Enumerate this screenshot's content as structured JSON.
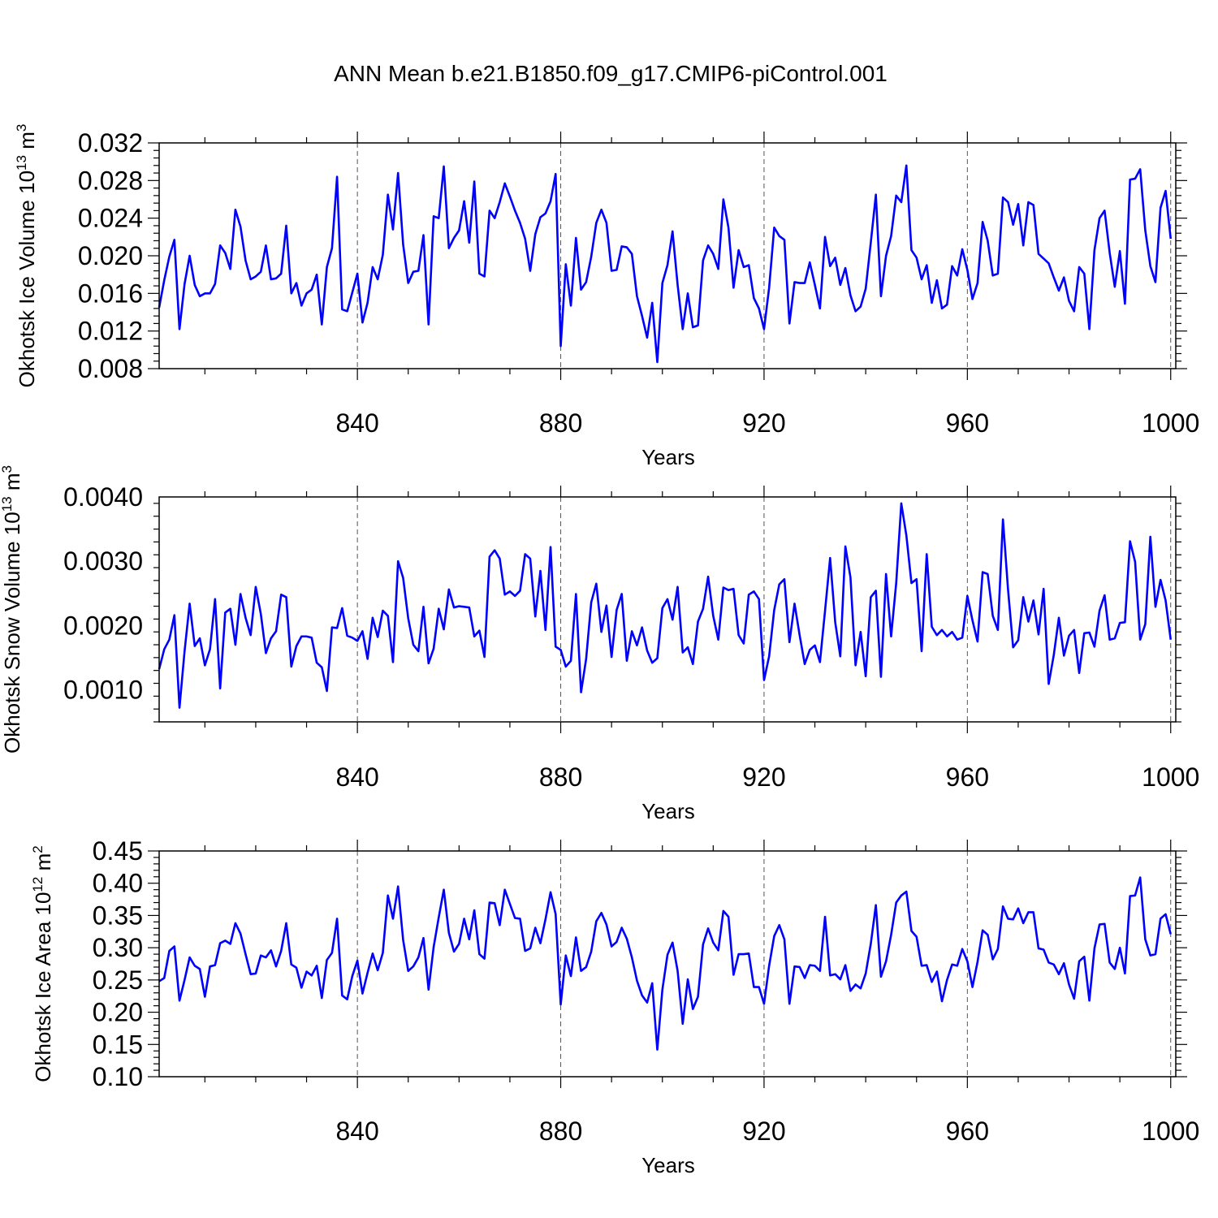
{
  "chart_data": {
    "type": "line",
    "title": "ANN Mean b.e21.B1850.f09_g17.CMIP6-piControl.001",
    "line_color": "#0000ff",
    "xlim": [
      801,
      1001
    ],
    "x_start": 801,
    "x_step": 1,
    "xticks": [
      "840",
      "880",
      "920",
      "960",
      "1000"
    ],
    "xlabel": "Years",
    "panels": [
      {
        "name": "ice-volume",
        "ylabel": "Okhotsk Ice Volume",
        "units": {
          "base": "10",
          "exp": "13",
          "unit": "m",
          "unit_exp": "3"
        },
        "ylim": [
          0.008,
          0.032
        ],
        "yticks": [
          "0.008",
          "0.012",
          "0.016",
          "0.020",
          "0.024",
          "0.028",
          "0.032"
        ],
        "values": [
          0.0145,
          0.0174,
          0.0199,
          0.0217,
          0.0122,
          0.017,
          0.02,
          0.0169,
          0.0157,
          0.016,
          0.016,
          0.017,
          0.0211,
          0.0203,
          0.0186,
          0.0249,
          0.0231,
          0.0195,
          0.0175,
          0.0178,
          0.0183,
          0.0211,
          0.0175,
          0.0176,
          0.0181,
          0.0232,
          0.016,
          0.0171,
          0.0147,
          0.016,
          0.0164,
          0.018,
          0.0127,
          0.0188,
          0.0208,
          0.0284,
          0.0143,
          0.0141,
          0.0161,
          0.0181,
          0.0129,
          0.015,
          0.0188,
          0.0175,
          0.0201,
          0.0265,
          0.0228,
          0.0288,
          0.0212,
          0.0171,
          0.0183,
          0.0184,
          0.0222,
          0.0127,
          0.0242,
          0.024,
          0.0295,
          0.0208,
          0.0219,
          0.0227,
          0.0258,
          0.0214,
          0.0279,
          0.0181,
          0.0178,
          0.0248,
          0.024,
          0.0257,
          0.0277,
          0.0263,
          0.0248,
          0.0235,
          0.0218,
          0.0184,
          0.0223,
          0.0241,
          0.0245,
          0.0258,
          0.0287,
          0.0104,
          0.0191,
          0.0147,
          0.0219,
          0.0164,
          0.0172,
          0.0199,
          0.0235,
          0.0249,
          0.0235,
          0.0184,
          0.0185,
          0.021,
          0.0209,
          0.0202,
          0.0157,
          0.0136,
          0.0113,
          0.015,
          0.0087,
          0.0171,
          0.019,
          0.0226,
          0.0169,
          0.0122,
          0.016,
          0.0124,
          0.0126,
          0.0195,
          0.0211,
          0.0202,
          0.0186,
          0.026,
          0.023,
          0.0166,
          0.0206,
          0.0188,
          0.019,
          0.0155,
          0.0144,
          0.0122,
          0.0166,
          0.023,
          0.0221,
          0.0217,
          0.0128,
          0.0172,
          0.0171,
          0.0171,
          0.0193,
          0.0169,
          0.0144,
          0.022,
          0.0189,
          0.0198,
          0.0169,
          0.0187,
          0.0158,
          0.0141,
          0.0146,
          0.0165,
          0.0214,
          0.0265,
          0.0157,
          0.02,
          0.0221,
          0.0264,
          0.0257,
          0.0296,
          0.0206,
          0.0198,
          0.0175,
          0.019,
          0.015,
          0.0174,
          0.0144,
          0.0148,
          0.0189,
          0.0179,
          0.0207,
          0.0185,
          0.0154,
          0.0171,
          0.0236,
          0.0216,
          0.0179,
          0.0181,
          0.0262,
          0.0257,
          0.0233,
          0.0255,
          0.0211,
          0.0257,
          0.0254,
          0.0202,
          0.0197,
          0.0192,
          0.0177,
          0.0163,
          0.0177,
          0.0152,
          0.0141,
          0.0188,
          0.0181,
          0.0122,
          0.0206,
          0.024,
          0.0248,
          0.0203,
          0.0167,
          0.0205,
          0.0149,
          0.0281,
          0.0282,
          0.0292,
          0.0227,
          0.0189,
          0.0172,
          0.0251,
          0.0269,
          0.0218
        ]
      },
      {
        "name": "snow-volume",
        "ylabel": "Okhotsk Snow Volume",
        "units": {
          "base": "10",
          "exp": "13",
          "unit": "m",
          "unit_exp": "3"
        },
        "ylim": [
          0.0005,
          0.004
        ],
        "yticks": [
          "0.0010",
          "0.0020",
          "0.0030",
          "0.0040"
        ],
        "values": [
          0.00132,
          0.00163,
          0.00178,
          0.00216,
          0.00072,
          0.0016,
          0.00234,
          0.00168,
          0.0018,
          0.00138,
          0.00163,
          0.00241,
          0.00102,
          0.0022,
          0.00226,
          0.0017,
          0.00249,
          0.00212,
          0.00185,
          0.0026,
          0.00218,
          0.00157,
          0.0018,
          0.00191,
          0.00248,
          0.00244,
          0.00136,
          0.00168,
          0.00183,
          0.00183,
          0.00181,
          0.00142,
          0.00135,
          0.00098,
          0.00197,
          0.00196,
          0.00227,
          0.00184,
          0.00181,
          0.00176,
          0.00191,
          0.00148,
          0.00212,
          0.00182,
          0.00223,
          0.00215,
          0.00143,
          0.003,
          0.00274,
          0.00211,
          0.0017,
          0.0016,
          0.00229,
          0.00141,
          0.00164,
          0.00226,
          0.00194,
          0.00256,
          0.00228,
          0.0023,
          0.00229,
          0.00228,
          0.00183,
          0.00192,
          0.00151,
          0.00307,
          0.00317,
          0.00304,
          0.00248,
          0.00253,
          0.00246,
          0.00254,
          0.00311,
          0.00304,
          0.00214,
          0.00285,
          0.00193,
          0.00322,
          0.00167,
          0.00162,
          0.00136,
          0.00145,
          0.00249,
          0.00096,
          0.00148,
          0.00236,
          0.00265,
          0.0019,
          0.00231,
          0.00151,
          0.00224,
          0.00249,
          0.00145,
          0.00191,
          0.00169,
          0.00197,
          0.00161,
          0.00142,
          0.00149,
          0.00227,
          0.00241,
          0.00209,
          0.0026,
          0.00158,
          0.00166,
          0.0014,
          0.00206,
          0.00226,
          0.00276,
          0.00215,
          0.00178,
          0.00259,
          0.00255,
          0.00257,
          0.00185,
          0.00172,
          0.00248,
          0.00253,
          0.00241,
          0.00115,
          0.00152,
          0.00224,
          0.00264,
          0.00272,
          0.00174,
          0.00234,
          0.00185,
          0.0014,
          0.00162,
          0.00169,
          0.00143,
          0.00223,
          0.00305,
          0.00205,
          0.00152,
          0.00323,
          0.00275,
          0.00138,
          0.0019,
          0.00121,
          0.00244,
          0.00254,
          0.0012,
          0.0028,
          0.00183,
          0.00266,
          0.0039,
          0.0034,
          0.00266,
          0.00272,
          0.0016,
          0.00311,
          0.00198,
          0.00185,
          0.00193,
          0.00183,
          0.0019,
          0.00178,
          0.00181,
          0.00246,
          0.00208,
          0.00175,
          0.00283,
          0.0028,
          0.00215,
          0.00193,
          0.00365,
          0.00256,
          0.00166,
          0.00177,
          0.00244,
          0.00206,
          0.00239,
          0.00186,
          0.00257,
          0.00109,
          0.00154,
          0.00212,
          0.00153,
          0.00184,
          0.00193,
          0.00126,
          0.00188,
          0.00189,
          0.00167,
          0.00223,
          0.00247,
          0.00178,
          0.0018,
          0.00204,
          0.00205,
          0.00331,
          0.00299,
          0.00178,
          0.00202,
          0.00338,
          0.00229,
          0.00271,
          0.00239,
          0.00178
        ]
      },
      {
        "name": "ice-area",
        "ylabel": "Okhotsk Ice Area",
        "units": {
          "base": "10",
          "exp": "12",
          "unit": "m",
          "unit_exp": "2"
        },
        "ylim": [
          0.1,
          0.45
        ],
        "yticks": [
          "0.10",
          "0.15",
          "0.20",
          "0.25",
          "0.30",
          "0.35",
          "0.40",
          "0.45"
        ],
        "values": [
          0.248,
          0.253,
          0.295,
          0.302,
          0.218,
          0.25,
          0.285,
          0.272,
          0.267,
          0.224,
          0.271,
          0.273,
          0.307,
          0.311,
          0.306,
          0.338,
          0.322,
          0.29,
          0.259,
          0.26,
          0.288,
          0.285,
          0.296,
          0.271,
          0.295,
          0.338,
          0.274,
          0.269,
          0.238,
          0.263,
          0.257,
          0.272,
          0.222,
          0.281,
          0.292,
          0.345,
          0.226,
          0.22,
          0.256,
          0.28,
          0.229,
          0.261,
          0.291,
          0.265,
          0.292,
          0.381,
          0.345,
          0.395,
          0.312,
          0.264,
          0.271,
          0.285,
          0.315,
          0.235,
          0.301,
          0.347,
          0.39,
          0.323,
          0.294,
          0.306,
          0.345,
          0.313,
          0.358,
          0.29,
          0.283,
          0.37,
          0.369,
          0.335,
          0.39,
          0.368,
          0.346,
          0.345,
          0.295,
          0.299,
          0.331,
          0.307,
          0.344,
          0.386,
          0.352,
          0.212,
          0.288,
          0.256,
          0.316,
          0.264,
          0.27,
          0.294,
          0.341,
          0.354,
          0.336,
          0.302,
          0.309,
          0.331,
          0.314,
          0.285,
          0.249,
          0.226,
          0.215,
          0.245,
          0.142,
          0.235,
          0.289,
          0.308,
          0.264,
          0.182,
          0.251,
          0.205,
          0.224,
          0.305,
          0.33,
          0.308,
          0.296,
          0.357,
          0.348,
          0.258,
          0.29,
          0.29,
          0.291,
          0.239,
          0.239,
          0.213,
          0.272,
          0.318,
          0.335,
          0.313,
          0.213,
          0.271,
          0.27,
          0.253,
          0.273,
          0.272,
          0.264,
          0.348,
          0.257,
          0.259,
          0.251,
          0.273,
          0.233,
          0.243,
          0.237,
          0.26,
          0.306,
          0.366,
          0.255,
          0.279,
          0.32,
          0.37,
          0.381,
          0.387,
          0.326,
          0.317,
          0.272,
          0.273,
          0.247,
          0.263,
          0.217,
          0.25,
          0.274,
          0.272,
          0.298,
          0.279,
          0.239,
          0.278,
          0.327,
          0.32,
          0.282,
          0.298,
          0.364,
          0.345,
          0.344,
          0.361,
          0.338,
          0.355,
          0.355,
          0.299,
          0.297,
          0.277,
          0.274,
          0.259,
          0.276,
          0.243,
          0.221,
          0.279,
          0.286,
          0.218,
          0.299,
          0.336,
          0.337,
          0.277,
          0.267,
          0.3,
          0.26,
          0.38,
          0.381,
          0.409,
          0.313,
          0.288,
          0.29,
          0.345,
          0.352,
          0.321
        ]
      }
    ]
  }
}
